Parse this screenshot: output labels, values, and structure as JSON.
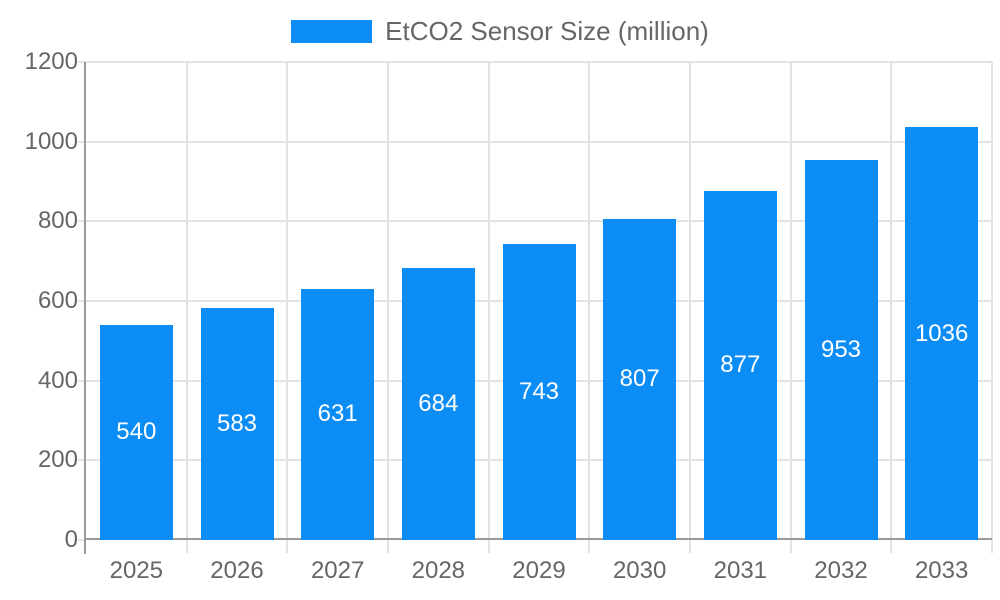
{
  "chart_data": {
    "type": "bar",
    "title": "EtCO2 Sensor Size (million)",
    "legend": {
      "position": "top",
      "items": [
        {
          "label": "EtCO2 Sensor Size (million)",
          "color": "#0b8df5"
        }
      ]
    },
    "categories": [
      "2025",
      "2026",
      "2027",
      "2028",
      "2029",
      "2030",
      "2031",
      "2032",
      "2033"
    ],
    "series": [
      {
        "name": "EtCO2 Sensor Size (million)",
        "values": [
          540,
          583,
          631,
          684,
          743,
          807,
          877,
          953,
          1036
        ]
      }
    ],
    "value_labels": [
      "540",
      "583",
      "631",
      "684",
      "743",
      "807",
      "877",
      "953",
      "1036"
    ],
    "xlabel": "",
    "ylabel": "",
    "ylim": [
      0,
      1200
    ],
    "yticks": [
      0,
      200,
      400,
      600,
      800,
      1000,
      1200
    ],
    "grid": true,
    "colors": {
      "bar": "#0b8df5",
      "value_label_text": "#ffffff",
      "axis_text": "#666666",
      "grid_line": "#e3e3e3",
      "axis_line": "#999999",
      "background": "#ffffff"
    }
  }
}
